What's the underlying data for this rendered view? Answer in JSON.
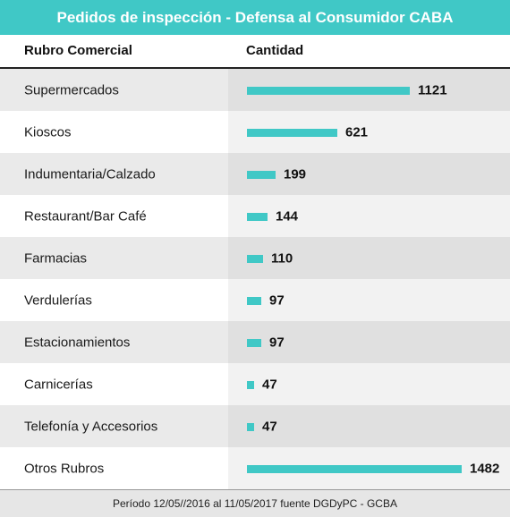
{
  "title": "Pedidos de inspección - Defensa al Consumidor CABA",
  "columns": {
    "rubro": "Rubro Comercial",
    "cantidad": "Cantidad"
  },
  "footer": "Período 12/05//2016 al 11/05/2017 fuente DGDyPC - GCBA",
  "colors": {
    "accent": "#40c8c6"
  },
  "chart_data": {
    "type": "bar",
    "categories": [
      "Supermercados",
      "Kioscos",
      "Indumentaria/Calzado",
      "Restaurant/Bar Café",
      "Farmacias",
      "Verdulerías",
      "Estacionamientos",
      "Carnicerías",
      "Telefonía y Accesorios",
      "Otros Rubros"
    ],
    "values": [
      1121,
      621,
      199,
      144,
      110,
      97,
      97,
      47,
      47,
      1482
    ],
    "title": "Pedidos de inspección - Defensa al Consumidor CABA",
    "xlabel": "Rubro Comercial",
    "ylabel": "Cantidad"
  }
}
